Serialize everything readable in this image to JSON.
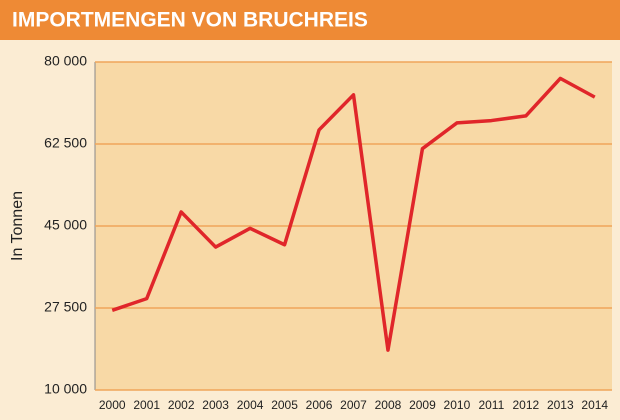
{
  "chart_data": {
    "type": "line",
    "title": "IMPORTMENGEN VON BRUCHREIS",
    "y_label": "In Tonnen",
    "categories": [
      "2000",
      "2001",
      "2002",
      "2003",
      "2004",
      "2005",
      "2006",
      "2007",
      "2008",
      "2009",
      "2010",
      "2011",
      "2012",
      "2013",
      "2014"
    ],
    "series": [
      {
        "name": "Bruchreis",
        "color": "#e0262a",
        "values": [
          27000,
          29500,
          48000,
          40500,
          44500,
          41000,
          65500,
          73000,
          18500,
          61500,
          67000,
          67500,
          68500,
          76500,
          72500
        ]
      }
    ],
    "ylim": [
      10000,
      80000
    ],
    "yticks": [
      {
        "value": 10000,
        "label": "10 000"
      },
      {
        "value": 27500,
        "label": "27 500"
      },
      {
        "value": 45000,
        "label": "45 000"
      },
      {
        "value": 62500,
        "label": "62 500"
      },
      {
        "value": 80000,
        "label": "80 000"
      }
    ],
    "grid": true
  }
}
